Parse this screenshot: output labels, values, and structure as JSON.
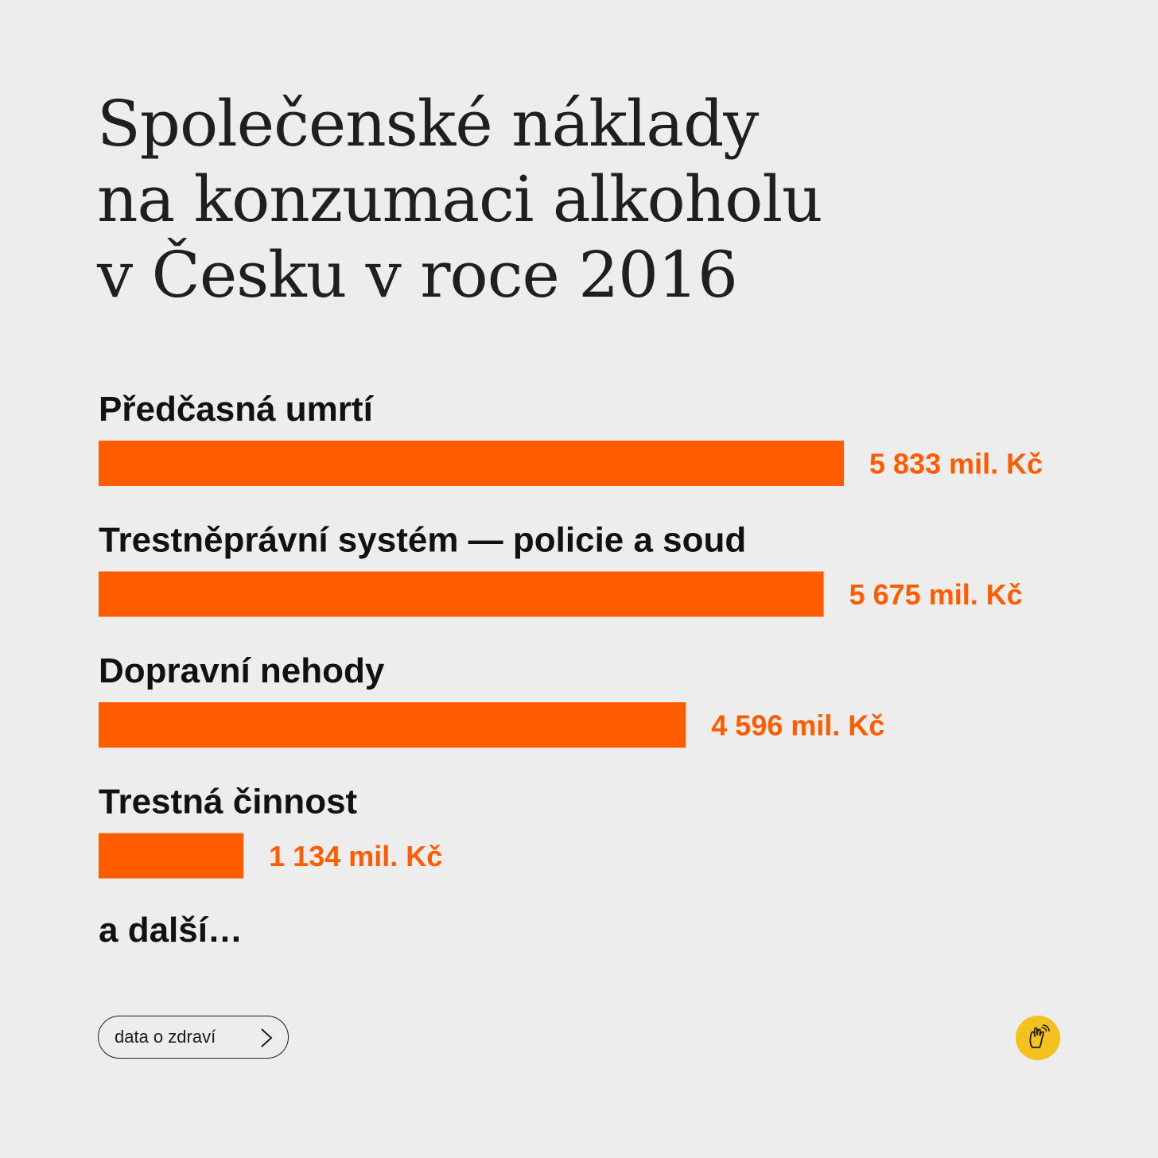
{
  "title_lines": [
    "Společenské náklady",
    "na konzumaci alkoholu",
    "v Česku v roce 2016"
  ],
  "chart_data": {
    "type": "bar",
    "orientation": "horizontal",
    "title": "Společenské náklady na konzumaci alkoholu v Česku v roce 2016",
    "unit": "mil. Kč",
    "categories": [
      "Předčasná umrtí",
      "Trestněprávní systém — policie a soud",
      "Dopravní nehody",
      "Trestná činnost"
    ],
    "values": [
      5833,
      5675,
      4596,
      1134
    ],
    "value_labels": [
      "5 833 mil. Kč",
      "5 675 mil. Kč",
      "4 596 mil. Kč",
      "1 134 mil. Kč"
    ],
    "bar_color": "#ff5c00",
    "grid": false,
    "legend": "none"
  },
  "more_text": "a další…",
  "source_button": {
    "label": "data o zdraví"
  },
  "colors": {
    "background": "#ededed",
    "accent": "#ff5c00",
    "badge": "#f5c11e",
    "text": "#111111"
  },
  "icons": {
    "source_arrow": "chevron-right-icon",
    "badge": "hand-pointing-icon"
  }
}
